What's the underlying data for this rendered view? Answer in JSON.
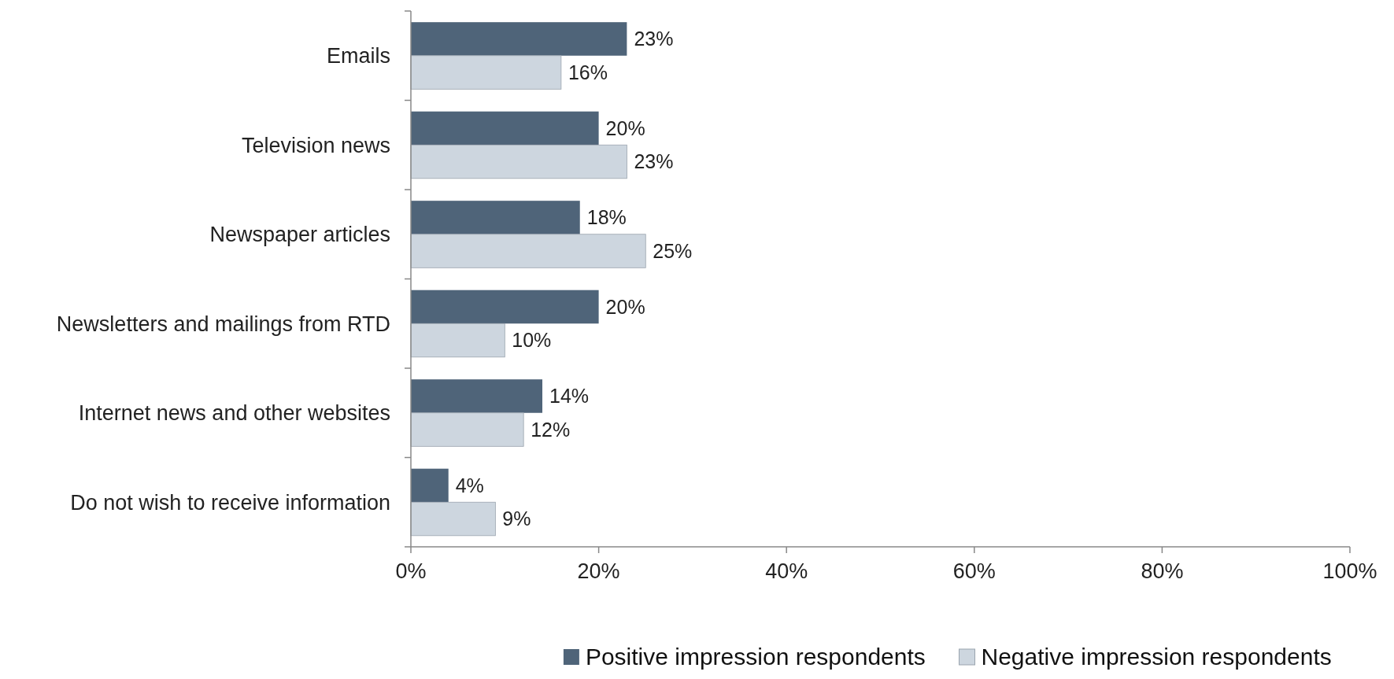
{
  "chart_data": {
    "type": "bar",
    "orientation": "horizontal",
    "categories": [
      "Emails",
      "Television news",
      "Newspaper articles",
      "Newsletters and mailings from RTD",
      "Internet news and other websites",
      "Do not wish to receive information"
    ],
    "series": [
      {
        "name": "Positive impression respondents",
        "color": "#4f6479",
        "values": [
          23,
          20,
          18,
          20,
          14,
          4
        ],
        "value_labels": [
          "23%",
          "20%",
          "18%",
          "20%",
          "14%",
          "4%"
        ]
      },
      {
        "name": "Negative impression respondents",
        "color": "#cdd6df",
        "values": [
          16,
          23,
          25,
          10,
          12,
          9
        ],
        "value_labels": [
          "16%",
          "23%",
          "25%",
          "10%",
          "12%",
          "9%"
        ]
      }
    ],
    "xlim": [
      0,
      100
    ],
    "xticks": [
      {
        "value": 0,
        "label": "0%"
      },
      {
        "value": 20,
        "label": "20%"
      },
      {
        "value": 40,
        "label": "40%"
      },
      {
        "value": 60,
        "label": "60%"
      },
      {
        "value": 80,
        "label": "80%"
      },
      {
        "value": 100,
        "label": "100%"
      }
    ],
    "legend": "bottom",
    "grid": false
  }
}
